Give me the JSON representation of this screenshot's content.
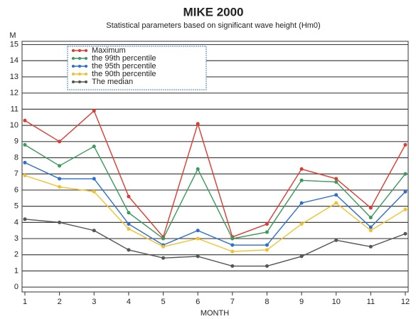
{
  "chart_data": {
    "type": "line",
    "title": "MIKE 2000",
    "subtitle": "Statistical parameters based on significant wave height (Hm0)",
    "y_label": "M",
    "x_label": "MONTH",
    "x": [
      1,
      2,
      3,
      4,
      5,
      6,
      7,
      8,
      9,
      10,
      11,
      12
    ],
    "xlim": [
      1,
      12
    ],
    "xticks": [
      1,
      2,
      3,
      4,
      5,
      6,
      7,
      8,
      9,
      10,
      11,
      12
    ],
    "ylim": [
      -0.3,
      15.2
    ],
    "yticks": [
      0,
      1,
      2,
      3,
      4,
      5,
      6,
      7,
      8,
      9,
      10,
      11,
      12,
      13,
      14,
      15
    ],
    "grid": true,
    "legend": "top-left",
    "series": [
      {
        "name": "Maximum",
        "color": "#e03a2e",
        "values": [
          10.3,
          9.0,
          10.9,
          5.6,
          3.1,
          10.1,
          3.1,
          3.9,
          7.3,
          6.7,
          4.9,
          8.8
        ]
      },
      {
        "name": "the 99th percentile",
        "color": "#3a9a5a",
        "values": [
          8.8,
          7.5,
          8.7,
          4.6,
          3.0,
          7.3,
          3.0,
          3.4,
          6.6,
          6.5,
          4.3,
          7.0
        ]
      },
      {
        "name": "the 95th percentile",
        "color": "#2a6fd0",
        "values": [
          7.7,
          6.7,
          6.7,
          3.9,
          2.6,
          3.5,
          2.6,
          2.6,
          5.2,
          5.7,
          3.7,
          5.9
        ]
      },
      {
        "name": "the 90th percentile",
        "color": "#f2c12e",
        "values": [
          6.9,
          6.2,
          5.9,
          3.6,
          2.5,
          3.0,
          2.2,
          2.3,
          3.9,
          5.2,
          3.5,
          4.8
        ]
      },
      {
        "name": "The median",
        "color": "#555555",
        "values": [
          4.2,
          4.0,
          3.5,
          2.3,
          1.8,
          1.9,
          1.3,
          1.3,
          1.9,
          2.9,
          2.5,
          3.3
        ]
      }
    ]
  }
}
